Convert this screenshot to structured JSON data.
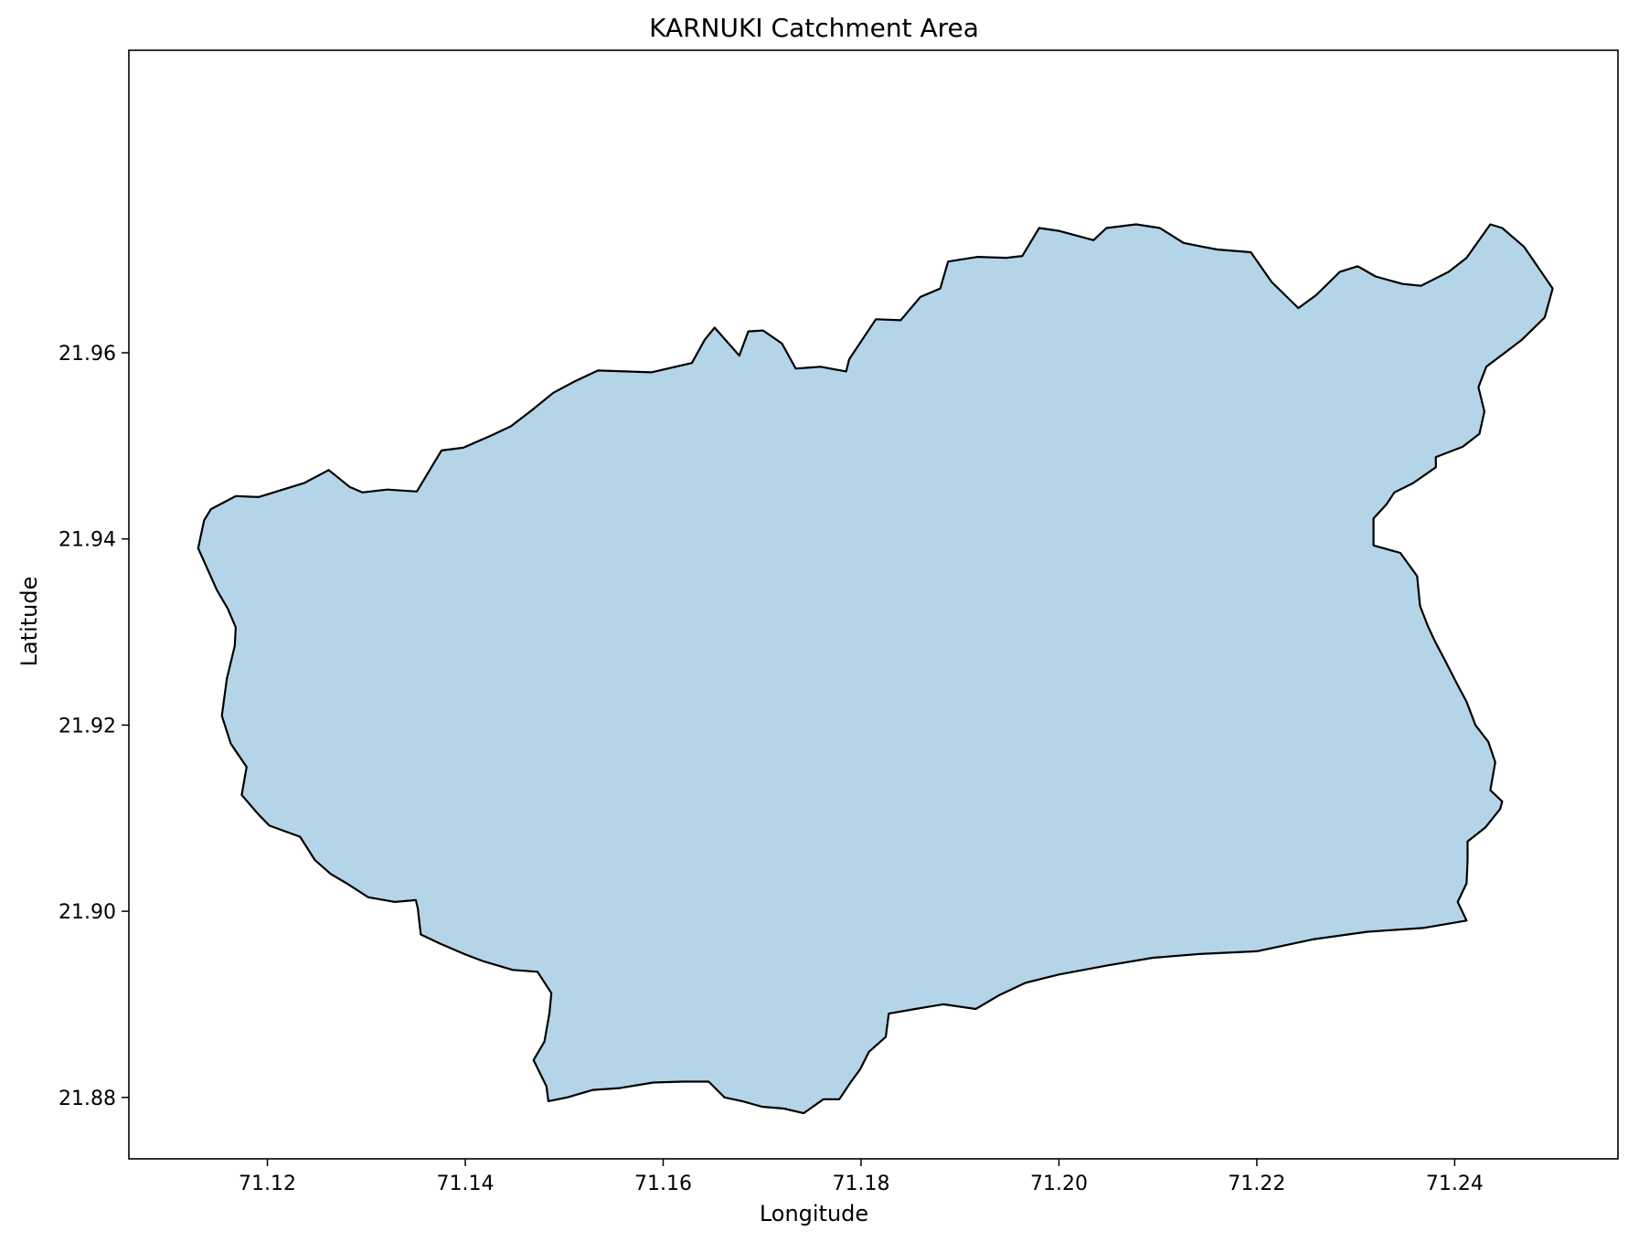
{
  "title": "KARNUKI Catchment Area",
  "colors": {
    "fill": "#b4d5e8",
    "outline": "#000000",
    "axes": "#000000"
  },
  "chart_data": {
    "type": "map",
    "title": "KARNUKI Catchment Area",
    "xlabel": "Longitude",
    "ylabel": "Latitude",
    "xlim": [
      71.106,
      71.2565
    ],
    "ylim": [
      21.8734,
      21.9925
    ],
    "xticks": [
      71.12,
      71.14,
      71.16,
      71.18,
      71.2,
      71.22,
      71.24
    ],
    "xtick_labels": [
      "71.12",
      "71.14",
      "71.16",
      "71.18",
      "71.20",
      "71.22",
      "71.24"
    ],
    "yticks": [
      21.88,
      21.9,
      21.92,
      21.94,
      21.96
    ],
    "ytick_labels": [
      "21.88",
      "21.90",
      "21.92",
      "21.94",
      "21.96"
    ],
    "grid": false,
    "legend": "none",
    "polygon": {
      "name": "KARNUKI",
      "fill": "#b4d5e8",
      "edge": "#000000",
      "coords": [
        [
          71.1143,
          21.9432
        ],
        [
          71.1168,
          21.9446
        ],
        [
          71.1191,
          21.9445
        ],
        [
          71.1237,
          21.946
        ],
        [
          71.1262,
          21.9474
        ],
        [
          71.1283,
          21.9456
        ],
        [
          71.1296,
          21.945
        ],
        [
          71.1321,
          21.9453
        ],
        [
          71.1351,
          21.9451
        ],
        [
          71.1376,
          21.9495
        ],
        [
          71.1398,
          21.9498
        ],
        [
          71.1426,
          21.9511
        ],
        [
          71.1446,
          21.9521
        ],
        [
          71.1467,
          21.9538
        ],
        [
          71.1489,
          21.9557
        ],
        [
          71.151,
          21.9569
        ],
        [
          71.1534,
          21.9581
        ],
        [
          71.1588,
          21.9579
        ],
        [
          71.1629,
          21.9589
        ],
        [
          71.1642,
          21.9614
        ],
        [
          71.1652,
          21.9627
        ],
        [
          71.1677,
          21.9597
        ],
        [
          71.1686,
          21.9623
        ],
        [
          71.1701,
          21.9624
        ],
        [
          71.172,
          21.961
        ],
        [
          71.1734,
          21.9583
        ],
        [
          71.1759,
          21.9585
        ],
        [
          71.1785,
          21.958
        ],
        [
          71.1788,
          21.9593
        ],
        [
          71.1815,
          21.9636
        ],
        [
          71.184,
          21.9635
        ],
        [
          71.186,
          21.966
        ],
        [
          71.188,
          21.9669
        ],
        [
          71.1888,
          21.9698
        ],
        [
          71.1918,
          21.9703
        ],
        [
          71.1947,
          21.9702
        ],
        [
          71.1963,
          21.9704
        ],
        [
          71.198,
          21.9734
        ],
        [
          71.2,
          21.9731
        ],
        [
          71.2035,
          21.9721
        ],
        [
          71.2048,
          21.9734
        ],
        [
          71.2078,
          21.9738
        ],
        [
          71.2102,
          21.9734
        ],
        [
          71.2126,
          21.9718
        ],
        [
          71.2145,
          21.9714
        ],
        [
          71.216,
          21.9711
        ],
        [
          71.2194,
          21.9708
        ],
        [
          71.2215,
          21.9676
        ],
        [
          71.2242,
          21.9648
        ],
        [
          71.226,
          21.9662
        ],
        [
          71.2284,
          21.9687
        ],
        [
          71.2302,
          21.9693
        ],
        [
          71.232,
          21.9682
        ],
        [
          71.2347,
          21.9674
        ],
        [
          71.2366,
          21.9672
        ],
        [
          71.2394,
          21.9687
        ],
        [
          71.2412,
          21.9702
        ],
        [
          71.2436,
          21.9738
        ],
        [
          71.2448,
          21.9734
        ],
        [
          71.247,
          21.9714
        ],
        [
          71.2499,
          21.9669
        ],
        [
          71.2491,
          21.9638
        ],
        [
          71.2468,
          21.9614
        ],
        [
          71.2432,
          21.9585
        ],
        [
          71.2424,
          21.9563
        ],
        [
          71.243,
          21.9537
        ],
        [
          71.2425,
          21.9513
        ],
        [
          71.2408,
          21.9499
        ],
        [
          71.2381,
          21.9488
        ],
        [
          71.2381,
          21.9477
        ],
        [
          71.2358,
          21.946
        ],
        [
          71.2339,
          21.945
        ],
        [
          71.2331,
          21.9437
        ],
        [
          71.2318,
          21.9422
        ],
        [
          71.2318,
          21.9393
        ],
        [
          71.2345,
          21.9385
        ],
        [
          71.2362,
          21.936
        ],
        [
          71.2365,
          21.9328
        ],
        [
          71.2373,
          21.9306
        ],
        [
          71.238,
          21.929
        ],
        [
          71.239,
          21.927
        ],
        [
          71.2402,
          21.9245
        ],
        [
          71.2412,
          21.9225
        ],
        [
          71.2421,
          21.92
        ],
        [
          71.2434,
          21.9182
        ],
        [
          71.2441,
          21.916
        ],
        [
          71.2436,
          21.913
        ],
        [
          71.2448,
          21.9118
        ],
        [
          71.2446,
          21.911
        ],
        [
          71.2431,
          21.909
        ],
        [
          71.2413,
          21.9075
        ],
        [
          71.2413,
          21.9055
        ],
        [
          71.2412,
          21.903
        ],
        [
          71.2403,
          21.901
        ],
        [
          71.2412,
          21.899
        ],
        [
          71.2368,
          21.8982
        ],
        [
          71.2312,
          21.8978
        ],
        [
          71.2258,
          21.897
        ],
        [
          71.22,
          21.8957
        ],
        [
          71.2142,
          21.8954
        ],
        [
          71.2095,
          21.895
        ],
        [
          71.205,
          21.8942
        ],
        [
          71.2,
          21.8932
        ],
        [
          71.1966,
          21.8923
        ],
        [
          71.194,
          21.891
        ],
        [
          71.1916,
          21.8895
        ],
        [
          71.1883,
          21.89
        ],
        [
          71.1855,
          21.8895
        ],
        [
          71.1828,
          21.889
        ],
        [
          71.1825,
          21.8865
        ],
        [
          71.1808,
          21.8849
        ],
        [
          71.1799,
          21.883
        ],
        [
          71.179,
          21.8817
        ],
        [
          71.1778,
          21.8798
        ],
        [
          71.1762,
          21.8798
        ],
        [
          71.1742,
          21.8783
        ],
        [
          71.1722,
          21.8788
        ],
        [
          71.17,
          21.879
        ],
        [
          71.168,
          21.8796
        ],
        [
          71.1662,
          21.88
        ],
        [
          71.1646,
          21.8817
        ],
        [
          71.162,
          21.8817
        ],
        [
          71.159,
          21.8816
        ],
        [
          71.1556,
          21.881
        ],
        [
          71.1529,
          21.8808
        ],
        [
          71.1503,
          21.88
        ],
        [
          71.1484,
          21.8796
        ],
        [
          71.1482,
          21.8812
        ],
        [
          71.1469,
          21.884
        ],
        [
          71.148,
          21.886
        ],
        [
          71.1485,
          21.889
        ],
        [
          71.1487,
          21.8912
        ],
        [
          71.1473,
          21.8935
        ],
        [
          71.1448,
          21.8937
        ],
        [
          71.1419,
          21.8946
        ],
        [
          71.1399,
          21.8954
        ],
        [
          71.1375,
          21.8965
        ],
        [
          71.1355,
          21.8975
        ],
        [
          71.1352,
          21.9003
        ],
        [
          71.135,
          21.9012
        ],
        [
          71.1329,
          21.901
        ],
        [
          71.1302,
          21.9015
        ],
        [
          71.128,
          21.903
        ],
        [
          71.1264,
          21.904
        ],
        [
          71.1248,
          21.9055
        ],
        [
          71.1233,
          21.908
        ],
        [
          71.1202,
          21.9092
        ],
        [
          71.1191,
          21.9104
        ],
        [
          71.1174,
          21.9125
        ],
        [
          71.1179,
          21.9155
        ],
        [
          71.1163,
          21.918
        ],
        [
          71.1154,
          21.921
        ],
        [
          71.1159,
          21.925
        ],
        [
          71.1167,
          21.9285
        ],
        [
          71.1168,
          21.9305
        ],
        [
          71.116,
          21.9325
        ],
        [
          71.1149,
          21.9345
        ],
        [
          71.113,
          21.939
        ],
        [
          71.1136,
          21.942
        ]
      ]
    }
  }
}
